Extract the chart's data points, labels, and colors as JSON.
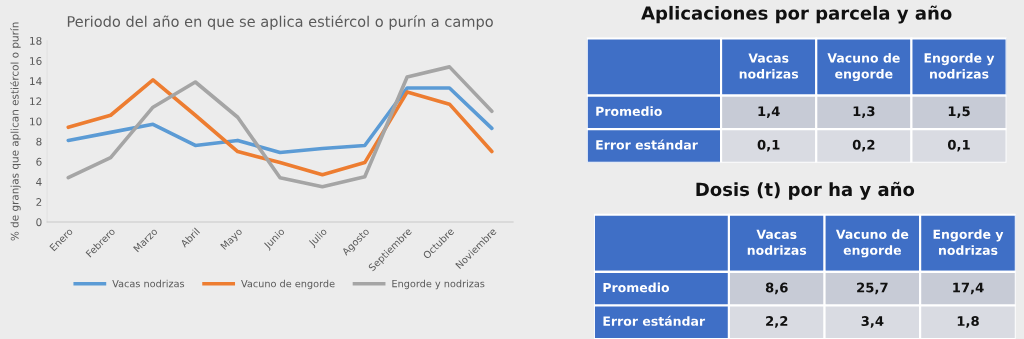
{
  "chart_data": [
    {
      "type": "line",
      "title": "Periodo del año en que se aplica estiércol o purín a campo",
      "ylabel": "% de granjas que aplican estiércol o purín",
      "categories": [
        "Enero",
        "Febrero",
        "Marzo",
        "Abril",
        "Mayo",
        "Junio",
        "Julio",
        "Agosto",
        "Septiembre",
        "Octubre",
        "Noviembre"
      ],
      "series": [
        {
          "name": "Vacas nodrizas",
          "color": "#5b9bd5",
          "values": [
            8.1,
            8.9,
            9.7,
            7.6,
            8.1,
            6.9,
            7.3,
            7.6,
            13.3,
            13.3,
            9.3
          ]
        },
        {
          "name": "Vacuno de engorde",
          "color": "#ed7d31",
          "values": [
            9.4,
            10.6,
            14.1,
            10.6,
            7.0,
            5.9,
            4.7,
            5.9,
            12.9,
            11.7,
            7.0
          ]
        },
        {
          "name": "Engorde y nodrizas",
          "color": "#a5a5a5",
          "values": [
            4.4,
            6.4,
            11.4,
            13.9,
            10.4,
            4.4,
            3.5,
            4.5,
            14.4,
            15.4,
            11.0
          ]
        }
      ],
      "ylim": [
        0,
        18
      ],
      "yticks": [
        0,
        2,
        4,
        6,
        8,
        10,
        12,
        14,
        16,
        18
      ],
      "grid": false,
      "legend": "bottom",
      "marker": "none",
      "line_style": "solid"
    },
    {
      "type": "other",
      "title": "Aplicaciones por parcela y año",
      "categories": [
        "Vacas nodrizas",
        "Vacuno de engorde",
        "Engorde y nodrizas"
      ],
      "y_categories": [
        "Promedio",
        "Error estándar"
      ],
      "cell_labels": [
        [
          "1,4",
          "1,3",
          "1,5"
        ],
        [
          "0,1",
          "0,2",
          "0,1"
        ]
      ]
    },
    {
      "type": "other",
      "title": "Dosis (t) por ha y año",
      "categories": [
        "Vacas nodrizas",
        "Vacuno de engorde",
        "Engorde y nodrizas"
      ],
      "y_categories": [
        "Promedio",
        "Error estándar"
      ],
      "cell_labels": [
        [
          "8,6",
          "25,7",
          "17,4"
        ],
        [
          "2,2",
          "3,4",
          "1,8"
        ]
      ]
    }
  ]
}
